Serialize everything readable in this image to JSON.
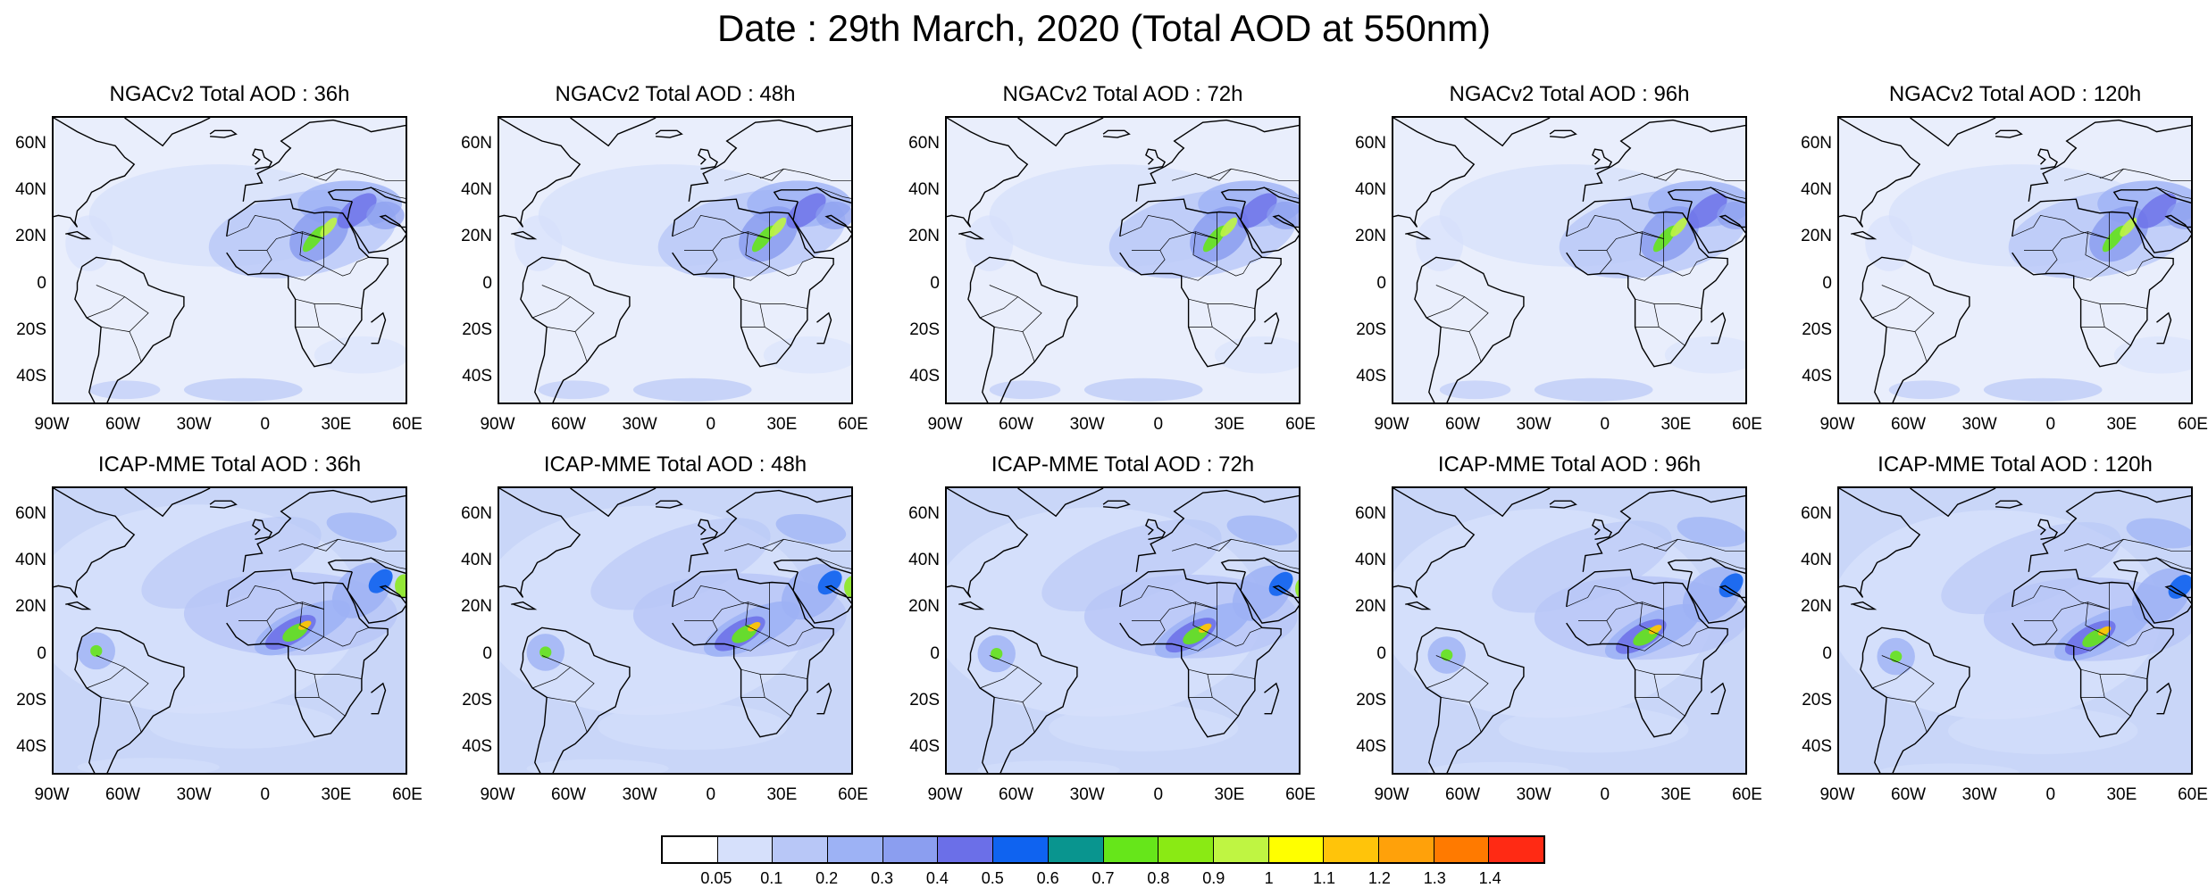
{
  "title": "Date : 29th March, 2020 (Total AOD at 550nm)",
  "rows": [
    {
      "panels": [
        {
          "title": "NGACv2 Total AOD : 36h"
        },
        {
          "title": "NGACv2 Total AOD : 48h"
        },
        {
          "title": "NGACv2 Total AOD : 72h"
        },
        {
          "title": "NGACv2 Total AOD : 96h"
        },
        {
          "title": "NGACv2 Total AOD : 120h"
        }
      ]
    },
    {
      "panels": [
        {
          "title": "ICAP-MME Total AOD : 36h"
        },
        {
          "title": "ICAP-MME Total AOD : 48h"
        },
        {
          "title": "ICAP-MME Total AOD : 72h"
        },
        {
          "title": "ICAP-MME Total AOD : 96h"
        },
        {
          "title": "ICAP-MME Total AOD : 120h"
        }
      ]
    }
  ],
  "axes": {
    "lat_labels": [
      "60N",
      "40N",
      "20N",
      "0",
      "20S",
      "40S"
    ],
    "lon_labels": [
      "90W",
      "60W",
      "30W",
      "0",
      "30E",
      "60E"
    ]
  },
  "colorbar": {
    "colors": [
      "#ffffff",
      "#d6e0fb",
      "#b8c7f7",
      "#9db2f5",
      "#8b9ef0",
      "#6b6fe8",
      "#0f63f0",
      "#09958f",
      "#66e61a",
      "#8aea14",
      "#bff542",
      "#ffff00",
      "#ffc40a",
      "#ffa10a",
      "#ff7a00",
      "#ff2a14"
    ],
    "labels": [
      "0.05",
      "0.1",
      "0.2",
      "0.3",
      "0.4",
      "0.5",
      "0.6",
      "0.7",
      "0.8",
      "0.9",
      "1",
      "1.1",
      "1.2",
      "1.3",
      "1.4"
    ]
  }
}
